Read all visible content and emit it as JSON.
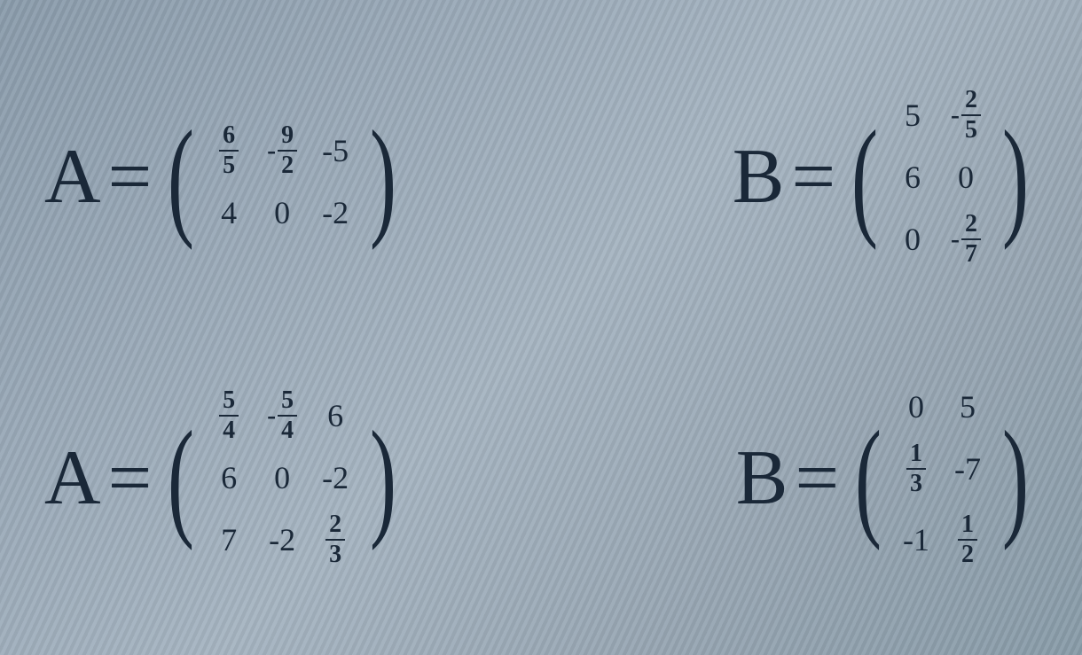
{
  "text_color": "#1a2838",
  "background_gradient": [
    "#8a9aa8",
    "#9aa8b5",
    "#a8b5c0",
    "#98a5b0",
    "#889aa5"
  ],
  "equations": {
    "row1": {
      "A": {
        "label": "A",
        "equals": "=",
        "type": "matrix",
        "cols": 3,
        "rows": 2,
        "cells": [
          {
            "type": "frac",
            "num": "6",
            "den": "5"
          },
          {
            "type": "negfrac",
            "num": "9",
            "den": "2"
          },
          {
            "type": "whole",
            "value": "-5"
          },
          {
            "type": "whole",
            "value": "4"
          },
          {
            "type": "whole",
            "value": "0"
          },
          {
            "type": "whole",
            "value": "-2"
          }
        ]
      },
      "B": {
        "label": "B",
        "equals": "=",
        "type": "matrix",
        "cols": 2,
        "rows": 3,
        "cells": [
          {
            "type": "whole",
            "value": "5"
          },
          {
            "type": "negfrac",
            "num": "2",
            "den": "5"
          },
          {
            "type": "whole",
            "value": "6"
          },
          {
            "type": "whole",
            "value": "0"
          },
          {
            "type": "whole",
            "value": "0"
          },
          {
            "type": "negfrac",
            "num": "2",
            "den": "7"
          }
        ]
      }
    },
    "row2": {
      "A": {
        "label": "A",
        "equals": "=",
        "type": "matrix",
        "cols": 3,
        "rows": 3,
        "cells": [
          {
            "type": "frac",
            "num": "5",
            "den": "4"
          },
          {
            "type": "negfrac",
            "num": "5",
            "den": "4"
          },
          {
            "type": "whole",
            "value": "6"
          },
          {
            "type": "whole",
            "value": "6"
          },
          {
            "type": "whole",
            "value": "0"
          },
          {
            "type": "whole",
            "value": "-2"
          },
          {
            "type": "whole",
            "value": "7"
          },
          {
            "type": "whole",
            "value": "-2"
          },
          {
            "type": "frac",
            "num": "2",
            "den": "3"
          }
        ]
      },
      "B": {
        "label": "B",
        "equals": "=",
        "type": "matrix",
        "cols": 2,
        "rows": 3,
        "cells": [
          {
            "type": "whole",
            "value": "0"
          },
          {
            "type": "whole",
            "value": "5"
          },
          {
            "type": "frac",
            "num": "1",
            "den": "3"
          },
          {
            "type": "whole",
            "value": "-7"
          },
          {
            "type": "whole",
            "value": "-1"
          },
          {
            "type": "frac",
            "num": "1",
            "den": "2"
          }
        ]
      }
    }
  }
}
